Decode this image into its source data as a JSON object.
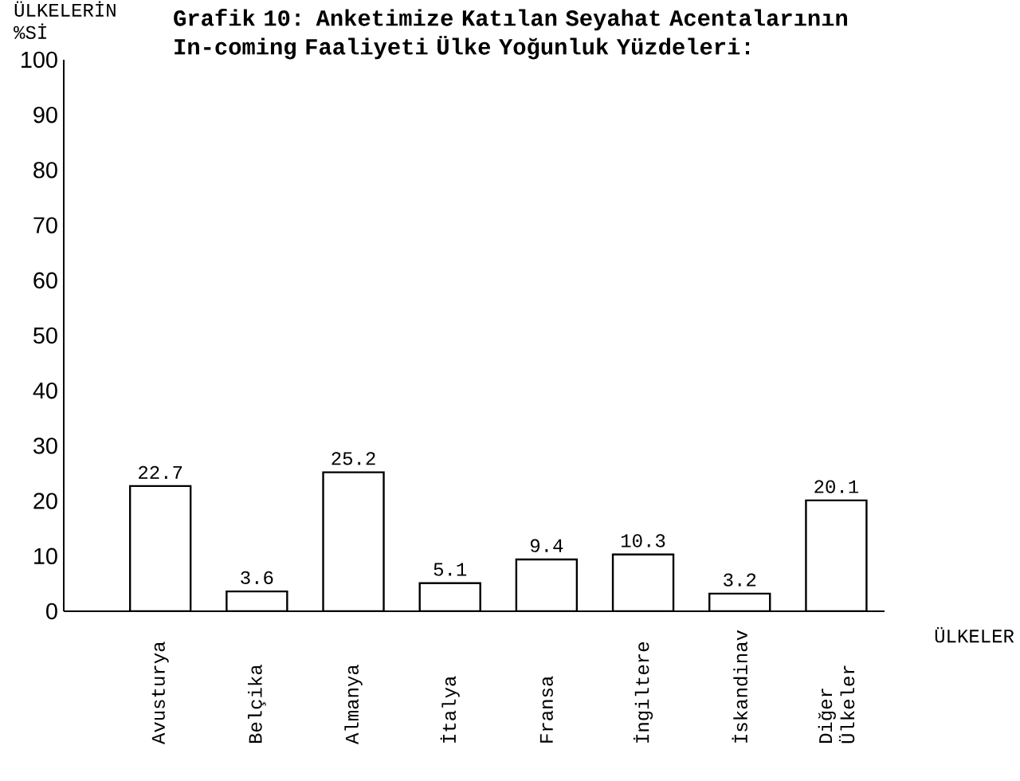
{
  "chart_data": {
    "type": "bar",
    "title": "Grafik 10: Anketimize Katılan Seyahat Acentalarının In-coming Faaliyeti Ülke Yoğunluk Yüzdeleri:",
    "ylabel": "ÜLKELERİN %Sİ",
    "xlabel": "ÜLKELER",
    "categories": [
      "Avusturya",
      "Belçika",
      "Almanya",
      "İtalya",
      "Fransa",
      "İngiltere",
      "İskandinav",
      "Diğer Ülkeler"
    ],
    "values": [
      22.7,
      3.6,
      25.2,
      5.1,
      9.4,
      10.3,
      3.2,
      20.1
    ],
    "color": "#ffffff",
    "data_labels": true,
    "ylim": [
      0,
      100
    ],
    "yticks": [
      0,
      10,
      20,
      30,
      40,
      50,
      60,
      70,
      80,
      90,
      100
    ],
    "grid": false
  }
}
